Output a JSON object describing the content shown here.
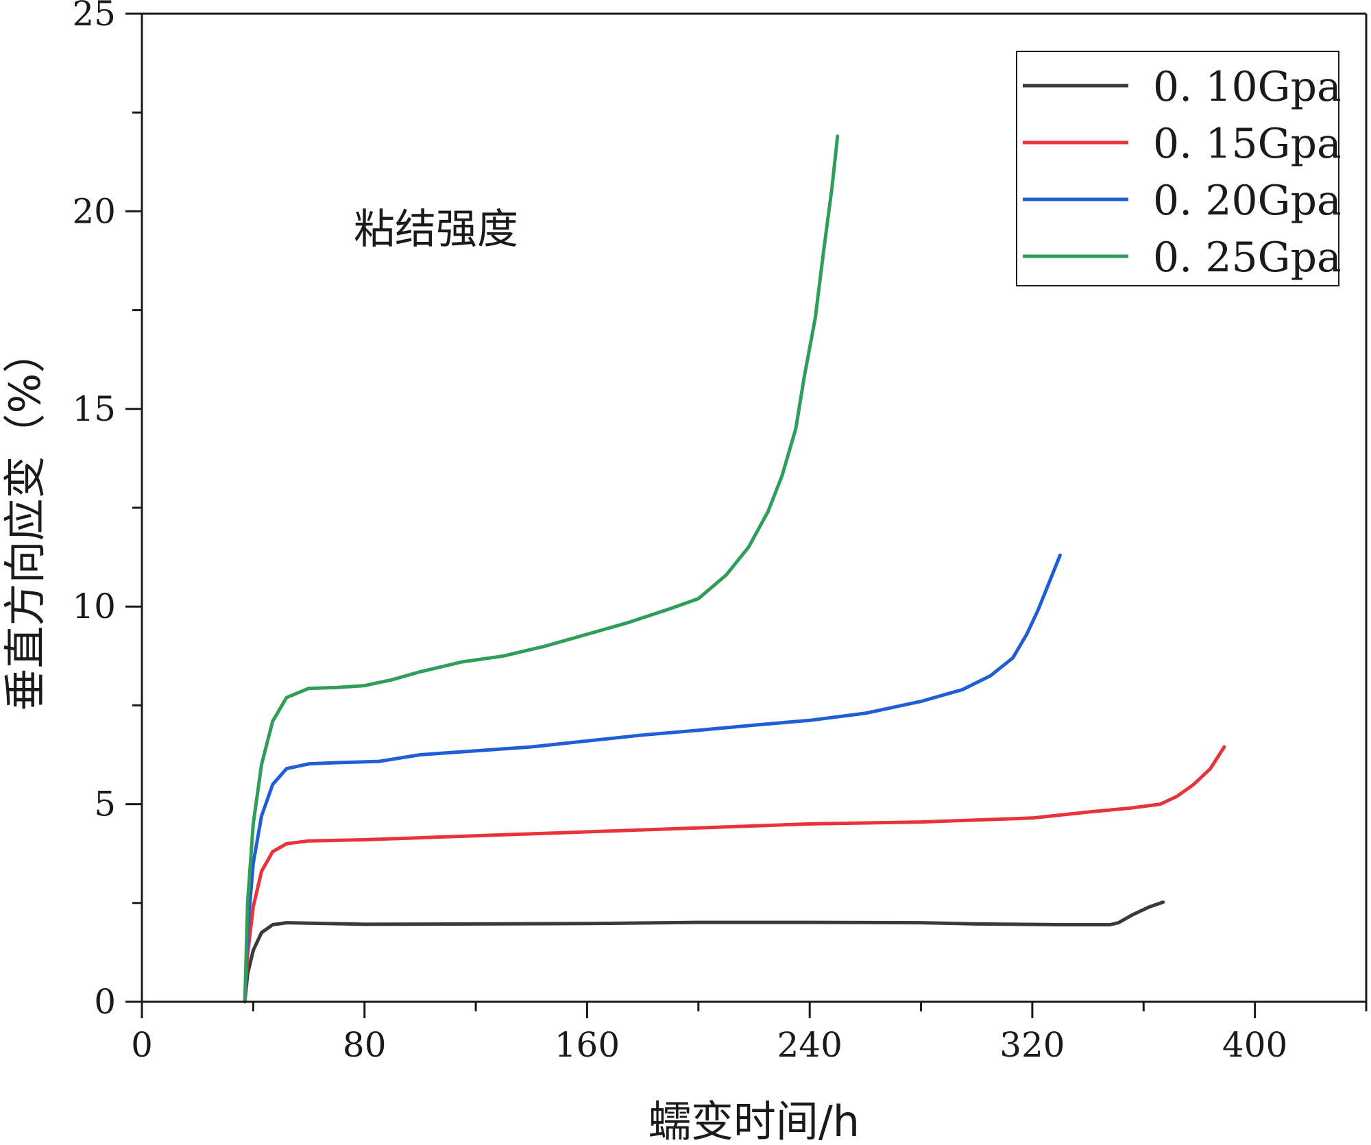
{
  "chart_data": {
    "type": "line",
    "title": "",
    "annotation": "粘结强度",
    "xlabel": "蠕变时间/h",
    "ylabel": "垂直方向应变（%）",
    "xlim": [
      0,
      440
    ],
    "ylim": [
      0,
      25
    ],
    "xticks": [
      0,
      80,
      160,
      240,
      320,
      400
    ],
    "yticks": [
      0,
      5,
      10,
      15,
      20,
      25
    ],
    "x_minor_step": 40,
    "y_minor_step": 2.5,
    "grid": false,
    "legend_position": "top-right",
    "series": [
      {
        "name": "0. 10Gpa",
        "color": "#3a3a3a",
        "points": [
          [
            37,
            0
          ],
          [
            38,
            0.7
          ],
          [
            40,
            1.3
          ],
          [
            43,
            1.75
          ],
          [
            47,
            1.95
          ],
          [
            52,
            2.0
          ],
          [
            60,
            1.99
          ],
          [
            80,
            1.96
          ],
          [
            120,
            1.97
          ],
          [
            160,
            1.98
          ],
          [
            200,
            2.01
          ],
          [
            240,
            2.01
          ],
          [
            280,
            2.0
          ],
          [
            300,
            1.97
          ],
          [
            330,
            1.95
          ],
          [
            348,
            1.95
          ],
          [
            351,
            2.0
          ],
          [
            356,
            2.2
          ],
          [
            362,
            2.4
          ],
          [
            367,
            2.52
          ]
        ]
      },
      {
        "name": "0. 15Gpa",
        "color": "#e8333a",
        "points": [
          [
            37,
            0
          ],
          [
            38,
            1.2
          ],
          [
            40,
            2.4
          ],
          [
            43,
            3.3
          ],
          [
            47,
            3.8
          ],
          [
            52,
            4.0
          ],
          [
            60,
            4.07
          ],
          [
            80,
            4.1
          ],
          [
            100,
            4.15
          ],
          [
            120,
            4.2
          ],
          [
            160,
            4.3
          ],
          [
            200,
            4.4
          ],
          [
            240,
            4.5
          ],
          [
            280,
            4.55
          ],
          [
            320,
            4.65
          ],
          [
            340,
            4.8
          ],
          [
            355,
            4.9
          ],
          [
            366,
            5.0
          ],
          [
            372,
            5.2
          ],
          [
            378,
            5.5
          ],
          [
            384,
            5.9
          ],
          [
            389,
            6.45
          ]
        ]
      },
      {
        "name": "0. 20Gpa",
        "color": "#1f5ed6",
        "points": [
          [
            37,
            0
          ],
          [
            38,
            1.8
          ],
          [
            40,
            3.5
          ],
          [
            43,
            4.7
          ],
          [
            47,
            5.5
          ],
          [
            52,
            5.9
          ],
          [
            60,
            6.02
          ],
          [
            70,
            6.05
          ],
          [
            85,
            6.08
          ],
          [
            100,
            6.25
          ],
          [
            120,
            6.35
          ],
          [
            140,
            6.45
          ],
          [
            160,
            6.6
          ],
          [
            180,
            6.75
          ],
          [
            200,
            6.87
          ],
          [
            220,
            7.0
          ],
          [
            240,
            7.12
          ],
          [
            260,
            7.3
          ],
          [
            280,
            7.6
          ],
          [
            295,
            7.9
          ],
          [
            305,
            8.25
          ],
          [
            313,
            8.7
          ],
          [
            318,
            9.3
          ],
          [
            322,
            9.9
          ],
          [
            326,
            10.6
          ],
          [
            330,
            11.3
          ]
        ]
      },
      {
        "name": "0. 25Gpa",
        "color": "#2e9e58",
        "points": [
          [
            37,
            0
          ],
          [
            38,
            2.5
          ],
          [
            40,
            4.5
          ],
          [
            43,
            6.0
          ],
          [
            47,
            7.1
          ],
          [
            52,
            7.7
          ],
          [
            60,
            7.93
          ],
          [
            70,
            7.95
          ],
          [
            80,
            8.0
          ],
          [
            90,
            8.15
          ],
          [
            100,
            8.35
          ],
          [
            115,
            8.6
          ],
          [
            130,
            8.75
          ],
          [
            145,
            9.0
          ],
          [
            160,
            9.3
          ],
          [
            175,
            9.6
          ],
          [
            190,
            9.95
          ],
          [
            200,
            10.2
          ],
          [
            210,
            10.8
          ],
          [
            218,
            11.5
          ],
          [
            225,
            12.4
          ],
          [
            230,
            13.3
          ],
          [
            235,
            14.5
          ],
          [
            238,
            15.8
          ],
          [
            242,
            17.3
          ],
          [
            245,
            19.0
          ],
          [
            248,
            20.6
          ],
          [
            250,
            21.9
          ]
        ]
      }
    ]
  }
}
